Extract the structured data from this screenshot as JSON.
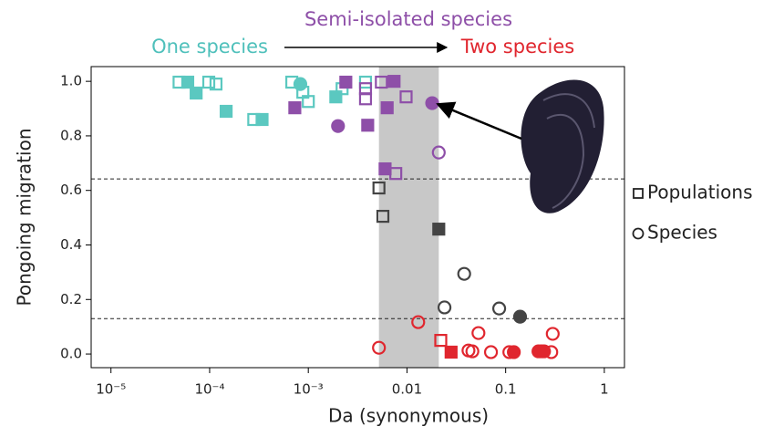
{
  "chart_data": {
    "type": "scatter",
    "title": "Semi-isolated species",
    "annotations": [
      {
        "text": "One species",
        "color": "#4fc0bb"
      },
      {
        "text": "Two species",
        "color": "#e0262e"
      }
    ],
    "title_color": "#8e4fa8",
    "x_label": "Da (synonymous)",
    "y_label": "Pongoing migration",
    "x_log": true,
    "xlim": [
      6.3e-06,
      1.6
    ],
    "ylim": [
      -0.05,
      1.054
    ],
    "xticks": [
      {
        "value": 1e-05,
        "label": "10⁻⁵"
      },
      {
        "value": 0.0001,
        "label": "10⁻⁴"
      },
      {
        "value": 0.001,
        "label": "10⁻³"
      },
      0.01,
      0.1,
      1
    ],
    "yticks": [
      {
        "value": 0,
        "label": "0.0"
      },
      0.2,
      0.4,
      0.6,
      0.8,
      {
        "value": 1,
        "label": "1.0"
      }
    ],
    "hlines": [
      0.642,
      0.13
    ],
    "band": [
      0.0052,
      0.021
    ],
    "legend": [
      {
        "name": "Populations",
        "marker": "square"
      },
      {
        "name": "Species",
        "marker": "circle"
      }
    ],
    "series": [
      {
        "color": "#5bc8c0",
        "marker": "square",
        "filled": false,
        "x": [
          4.9e-05,
          9.8e-05,
          0.000116,
          0.00028,
          0.00068,
          0.00088,
          0.001,
          0.0022,
          0.0038
        ],
        "y": [
          0.997,
          0.997,
          0.99,
          0.86,
          0.997,
          0.96,
          0.926,
          0.973,
          0.997
        ]
      },
      {
        "color": "#5bc8c0",
        "marker": "square",
        "filled": true,
        "x": [
          6e-05,
          7.3e-05,
          0.000147,
          0.00034,
          0.0019
        ],
        "y": [
          0.997,
          0.957,
          0.89,
          0.86,
          0.943
        ]
      },
      {
        "color": "#5bc8c0",
        "marker": "circle",
        "filled": true,
        "x": [
          0.00083
        ],
        "y": [
          0.99
        ]
      },
      {
        "color": "#8e4fa8",
        "marker": "square",
        "filled": true,
        "x": [
          0.00073,
          0.0024,
          0.004,
          0.006,
          0.0063,
          0.0074
        ],
        "y": [
          0.903,
          0.997,
          0.839,
          0.679,
          0.903,
          1.0
        ]
      },
      {
        "color": "#8e4fa8",
        "marker": "circle",
        "filled": true,
        "x": [
          0.002,
          0.018
        ],
        "y": [
          0.836,
          0.92
        ]
      },
      {
        "color": "#8e4fa8",
        "marker": "square",
        "filled": false,
        "x": [
          0.0038,
          0.0038,
          0.0055,
          0.0098,
          0.0077
        ],
        "y": [
          0.973,
          0.936,
          0.997,
          0.943,
          0.662
        ]
      },
      {
        "color": "#8e4fa8",
        "marker": "circle",
        "filled": false,
        "x": [
          0.021
        ],
        "y": [
          0.739
        ]
      },
      {
        "color": "#444444",
        "marker": "square",
        "filled": false,
        "x": [
          0.0052,
          0.0057
        ],
        "y": [
          0.609,
          0.505
        ]
      },
      {
        "color": "#444444",
        "marker": "square",
        "filled": true,
        "x": [
          0.021
        ],
        "y": [
          0.458
        ]
      },
      {
        "color": "#444444",
        "marker": "circle",
        "filled": false,
        "x": [
          0.024,
          0.038,
          0.086
        ],
        "y": [
          0.171,
          0.294,
          0.167
        ]
      },
      {
        "color": "#444444",
        "marker": "circle",
        "filled": true,
        "x": [
          0.14
        ],
        "y": [
          0.137
        ]
      },
      {
        "color": "#e0262e",
        "marker": "square",
        "filled": false,
        "x": [
          0.022
        ],
        "y": [
          0.05
        ]
      },
      {
        "color": "#e0262e",
        "marker": "square",
        "filled": true,
        "x": [
          0.028
        ],
        "y": [
          0.007
        ]
      },
      {
        "color": "#e0262e",
        "marker": "circle",
        "filled": false,
        "x": [
          0.0052,
          0.013,
          0.042,
          0.046,
          0.053,
          0.071,
          0.109,
          0.23,
          0.29,
          0.3
        ],
        "y": [
          0.023,
          0.117,
          0.013,
          0.01,
          0.077,
          0.007,
          0.007,
          0.01,
          0.007,
          0.074
        ]
      },
      {
        "color": "#e0262e",
        "marker": "circle",
        "filled": true,
        "x": [
          0.121,
          0.215,
          0.245
        ],
        "y": [
          0.007,
          0.01,
          0.01
        ]
      }
    ]
  }
}
